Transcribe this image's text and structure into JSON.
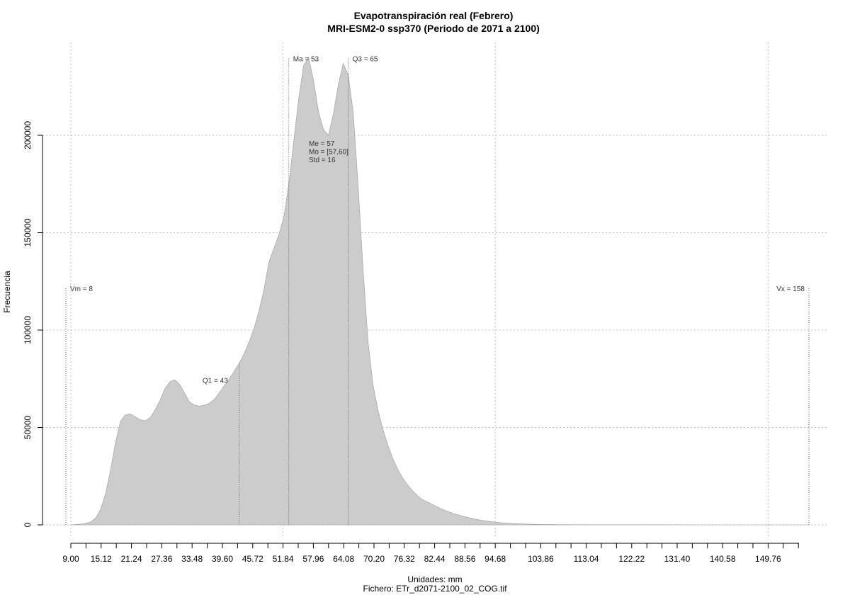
{
  "chart_data": {
    "type": "area",
    "title": "Evapotranspiración real (Febrero)",
    "subtitle": "MRI-ESM2-0 ssp370 (Periodo de 2071 a 2100)",
    "xlabel": "Unidades: mm",
    "ylabel": "Frecuencia",
    "caption": "Fichero: ETr_d2071-2100_02_COG.tif",
    "xlim": [
      9.0,
      158.0
    ],
    "ylim": [
      0,
      240000
    ],
    "x_ticks": [
      "9.00",
      "15.12",
      "21.24",
      "27.36",
      "33.48",
      "39.60",
      "45.72",
      "51.84",
      "57.96",
      "64.08",
      "70.20",
      "76.32",
      "82.44",
      "88.56",
      "94.68",
      "103.86",
      "113.04",
      "122.22",
      "131.40",
      "140.58",
      "149.76"
    ],
    "y_ticks": [
      "0",
      "50000",
      "100000",
      "150000",
      "200000"
    ],
    "x_gridlines": [
      9.0,
      51.84,
      94.68,
      149.76
    ],
    "y_gridlines": [
      0,
      50000,
      100000,
      150000,
      200000
    ],
    "grid": true,
    "fill_color": "#cccccc",
    "series": [
      {
        "x": [
          9.0,
          10.0,
          11.0,
          12.0,
          13.0,
          14.0,
          15.0,
          16.0,
          17.0,
          18.0,
          19.0,
          20.0,
          21.0,
          22.0,
          23.0,
          24.0,
          25.0,
          26.0,
          27.0,
          28.0,
          29.0,
          30.0,
          31.0,
          32.0,
          33.0,
          34.0,
          35.0,
          36.0,
          37.0,
          38.0,
          39.0,
          40.0,
          41.0,
          42.0,
          43.0,
          44.0,
          45.0,
          46.0,
          47.0,
          48.0,
          49.0,
          50.0,
          51.0,
          52.0,
          53.0,
          54.0,
          55.0,
          56.0,
          57.0,
          58.0,
          59.0,
          60.0,
          61.0,
          62.0,
          63.0,
          64.0,
          65.0,
          66.0,
          67.0,
          68.0,
          69.0,
          70.0,
          71.0,
          72.0,
          73.0,
          74.0,
          75.0,
          76.0,
          77.0,
          78.0,
          79.0,
          80.0,
          82.0,
          84.0,
          86.0,
          88.0,
          90.0,
          92.0,
          94.0,
          96.0,
          98.0,
          100.0,
          102.0,
          104.0,
          106.0,
          108.0,
          110.0,
          115.0,
          120.0,
          130.0,
          140.0,
          150.0,
          155.0,
          158.0
        ],
        "values": [
          0,
          200,
          400,
          800,
          1500,
          3500,
          8000,
          16000,
          28000,
          42000,
          53000,
          56500,
          57000,
          55500,
          54000,
          53500,
          55000,
          59000,
          64000,
          70000,
          73500,
          74500,
          72000,
          67500,
          63000,
          61500,
          61000,
          61500,
          62500,
          64500,
          68000,
          71500,
          75000,
          79000,
          83000,
          88000,
          94000,
          101000,
          110000,
          121000,
          135000,
          142000,
          149000,
          158000,
          175000,
          197000,
          219000,
          236000,
          240000,
          228000,
          212000,
          203000,
          200000,
          211000,
          226000,
          237000,
          231000,
          212000,
          174000,
          131000,
          94000,
          72000,
          59000,
          49000,
          41000,
          34000,
          28500,
          24000,
          20500,
          17500,
          15000,
          13000,
          10500,
          8000,
          6000,
          4500,
          3300,
          2300,
          1600,
          1100,
          700,
          500,
          300,
          200,
          150,
          100,
          80,
          50,
          30,
          20,
          10,
          5,
          2,
          0
        ]
      }
    ],
    "annotations": [
      {
        "label": "Vm = 8",
        "x": 8,
        "y": 120000
      },
      {
        "label": "Q1 = 43",
        "x": 43,
        "y": 73000
      },
      {
        "label": "Ma = 53",
        "x": 53,
        "y": 238000
      },
      {
        "label": "Q3 = 65",
        "x": 65,
        "y": 238000
      },
      {
        "label": "Vx = 158",
        "x": 158,
        "y": 120000
      }
    ],
    "stats_block": [
      "Me = 57",
      "Mo = [57,60]",
      "Std = 16"
    ]
  }
}
